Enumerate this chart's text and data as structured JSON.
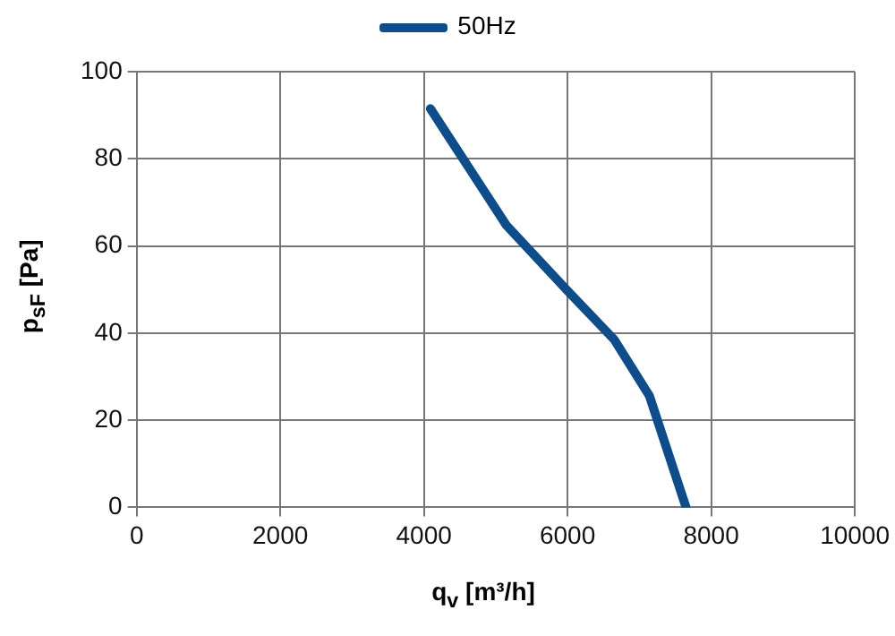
{
  "chart_data": {
    "type": "line",
    "xlabel": "q$_{v}$ [m³/h]",
    "ylabel": "p$_{sF}$ [Pa]",
    "xlim": [
      0,
      10000
    ],
    "xticks": [
      0,
      2000,
      4000,
      6000,
      8000,
      10000
    ],
    "ylim": [
      0,
      100
    ],
    "yticks": [
      0,
      20,
      40,
      60,
      80,
      100
    ],
    "grid": true,
    "legend": "top",
    "marker": "none",
    "series": [
      {
        "name": "50Hz",
        "color": "#0f4c8a",
        "x": [
          4090,
          5150,
          6000,
          6650,
          7140,
          7650
        ],
        "values": [
          91.5,
          64.7,
          49.7,
          38.5,
          25.6,
          0
        ]
      }
    ]
  }
}
